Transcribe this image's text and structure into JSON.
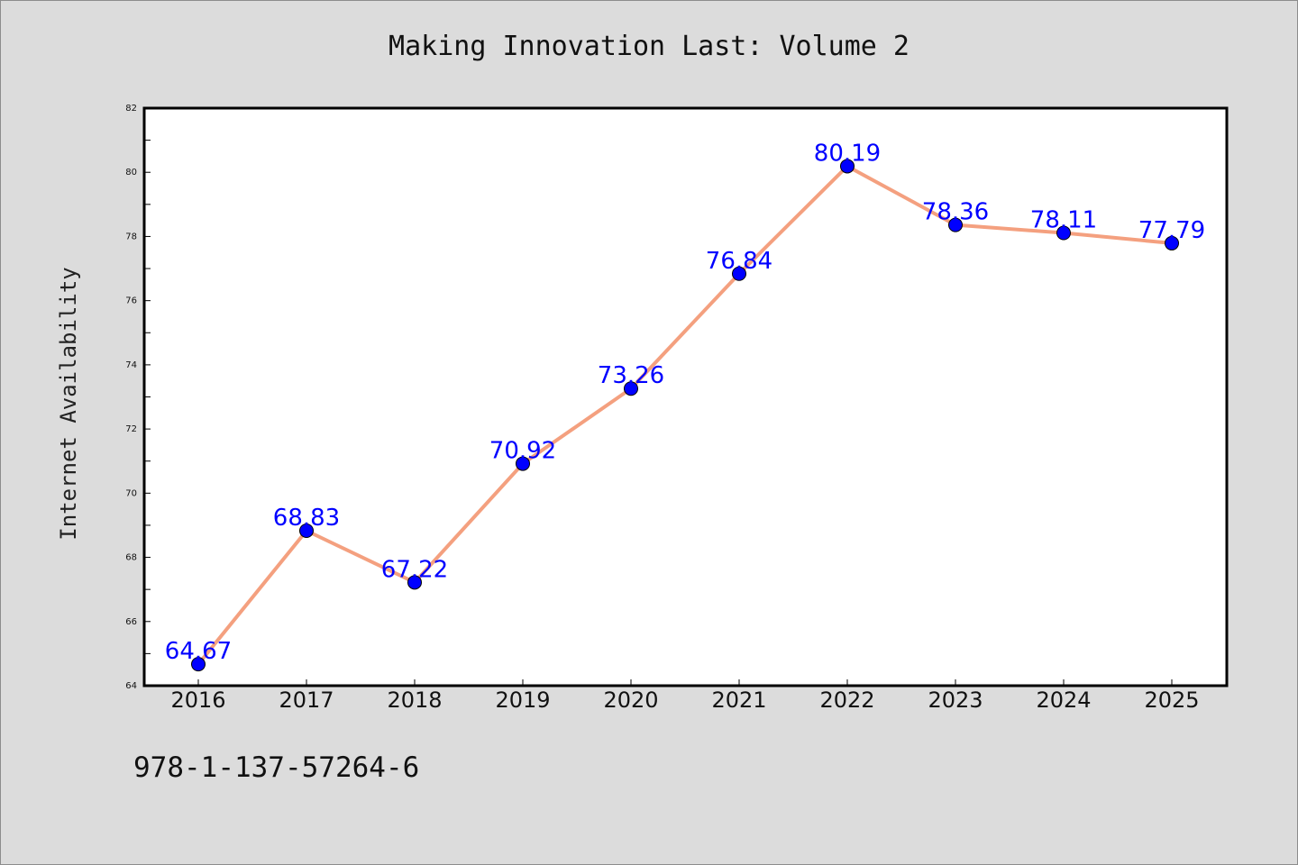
{
  "chart_data": {
    "type": "line",
    "title": "Making Innovation Last: Volume 2",
    "ylabel": "Internet Availability",
    "xlabel": "",
    "categories": [
      "2016",
      "2017",
      "2018",
      "2019",
      "2020",
      "2021",
      "2022",
      "2023",
      "2024",
      "2025"
    ],
    "series": [
      {
        "values": [
          64.67,
          68.83,
          67.22,
          70.92,
          73.26,
          76.84,
          80.19,
          78.36,
          78.11,
          77.79
        ],
        "labels": [
          "64.67",
          "68.83",
          "67.22",
          "70.92",
          "73.26",
          "76.84",
          "80.19",
          "78.36",
          "78.11",
          "77.79"
        ],
        "line_color": "#f4a07f",
        "marker_color": "#0000ff"
      }
    ],
    "ylim": [
      64,
      82
    ],
    "yticks": [
      64,
      66,
      68,
      70,
      72,
      74,
      76,
      78,
      80,
      82
    ],
    "ytick_labels": [
      "64",
      "66",
      "68",
      "70",
      "72",
      "74",
      "76",
      "78",
      "80",
      "82"
    ],
    "grid": false,
    "label_color": "#0000ff"
  },
  "footer": {
    "text": "978-1-137-57264-6"
  },
  "colors": {
    "background": "#dcdcdc",
    "plot_background": "#ffffff"
  }
}
